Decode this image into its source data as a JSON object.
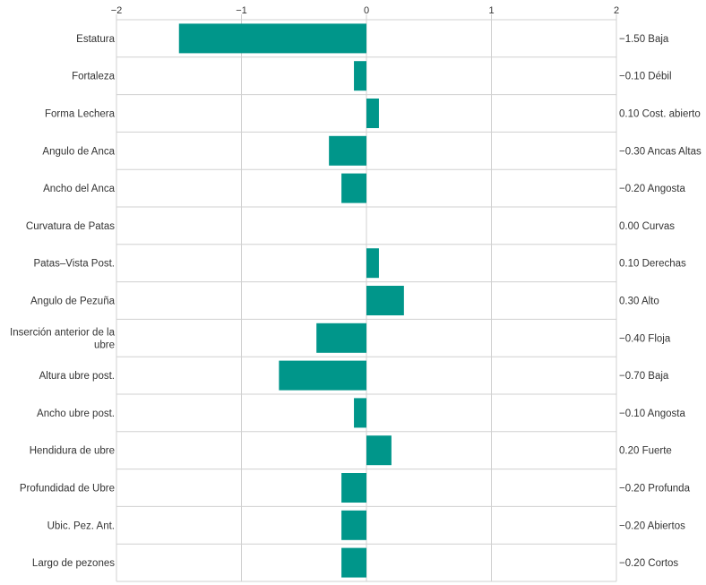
{
  "chart_data": {
    "type": "bar",
    "orientation": "horizontal",
    "xlim": [
      -2,
      2
    ],
    "xticks": [
      "−2",
      "−1",
      "0",
      "1",
      "2"
    ],
    "xtick_values": [
      -2,
      -1,
      0,
      1,
      2
    ],
    "grid": true,
    "bar_color": "#00968a",
    "categories": [
      "Estatura",
      "Fortaleza",
      "Forma Lechera",
      "Angulo de Anca",
      "Ancho del Anca",
      "Curvatura de Patas",
      "Patas–Vista Post.",
      "Angulo de Pezuña",
      "Inserción anterior de la ubre",
      "Altura ubre post.",
      "Ancho ubre post.",
      "Hendidura de ubre",
      "Profundidad de Ubre",
      "Ubic. Pez. Ant.",
      "Largo de pezones"
    ],
    "values": [
      -1.5,
      -0.1,
      0.1,
      -0.3,
      -0.2,
      0.0,
      0.1,
      0.3,
      -0.4,
      -0.7,
      -0.1,
      0.2,
      -0.2,
      -0.2,
      -0.2
    ],
    "value_labels": [
      "−1.50 Baja",
      "−0.10 Débil",
      "0.10 Cost. abierto",
      "−0.30 Ancas Altas",
      "−0.20 Angosta",
      "0.00 Curvas",
      "0.10 Derechas",
      "0.30 Alto",
      "−0.40 Floja",
      "−0.70 Baja",
      "−0.10 Angosta",
      "0.20 Fuerte",
      "−0.20 Profunda",
      "−0.20 Abiertos",
      "−0.20 Cortos"
    ]
  }
}
